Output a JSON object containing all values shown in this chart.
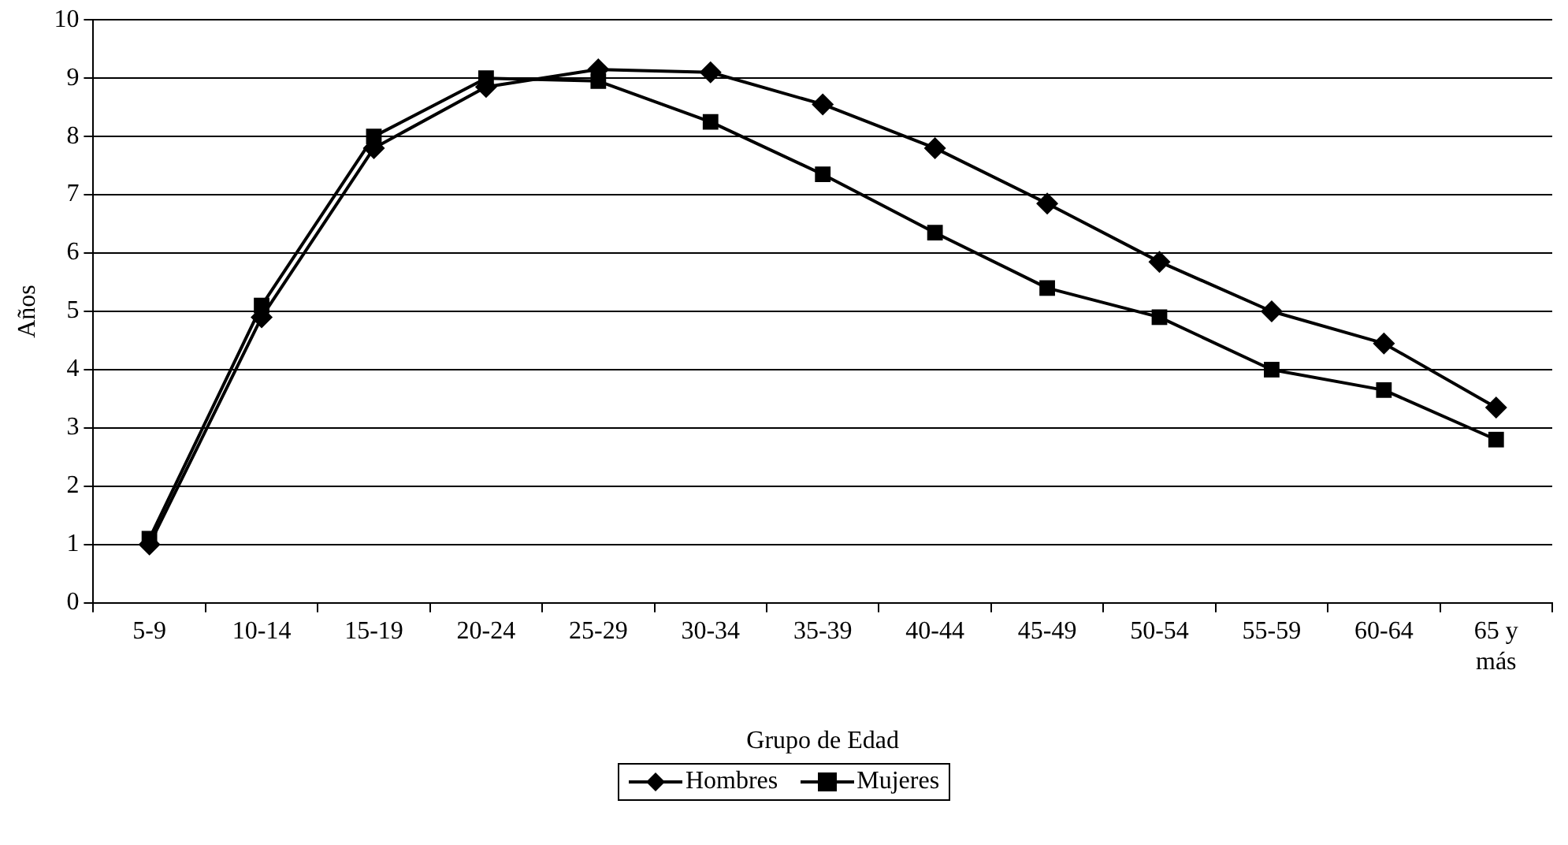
{
  "chart_data": {
    "type": "line",
    "xlabel": "Grupo de Edad",
    "ylabel": "Años",
    "categories": [
      "5-9",
      "10-14",
      "15-19",
      "20-24",
      "25-29",
      "30-34",
      "35-39",
      "40-44",
      "45-49",
      "50-54",
      "55-59",
      "60-64",
      "65 y más"
    ],
    "series": [
      {
        "name": "Hombres",
        "color": "#000000",
        "marker": "diamond",
        "values": [
          1.0,
          4.9,
          7.8,
          8.85,
          9.15,
          9.1,
          8.55,
          7.8,
          6.85,
          5.85,
          5.0,
          4.45,
          3.35
        ]
      },
      {
        "name": "Mujeres",
        "color": "#000000",
        "marker": "square",
        "values": [
          1.1,
          5.1,
          8.0,
          9.0,
          8.95,
          8.25,
          7.35,
          6.35,
          5.4,
          4.9,
          4.0,
          3.65,
          2.8
        ]
      }
    ],
    "ylim": [
      0,
      10
    ],
    "yticks": [
      0,
      1,
      2,
      3,
      4,
      5,
      6,
      7,
      8,
      9,
      10
    ],
    "grid": "y",
    "legend": "bottom",
    "line_style": "solid"
  }
}
